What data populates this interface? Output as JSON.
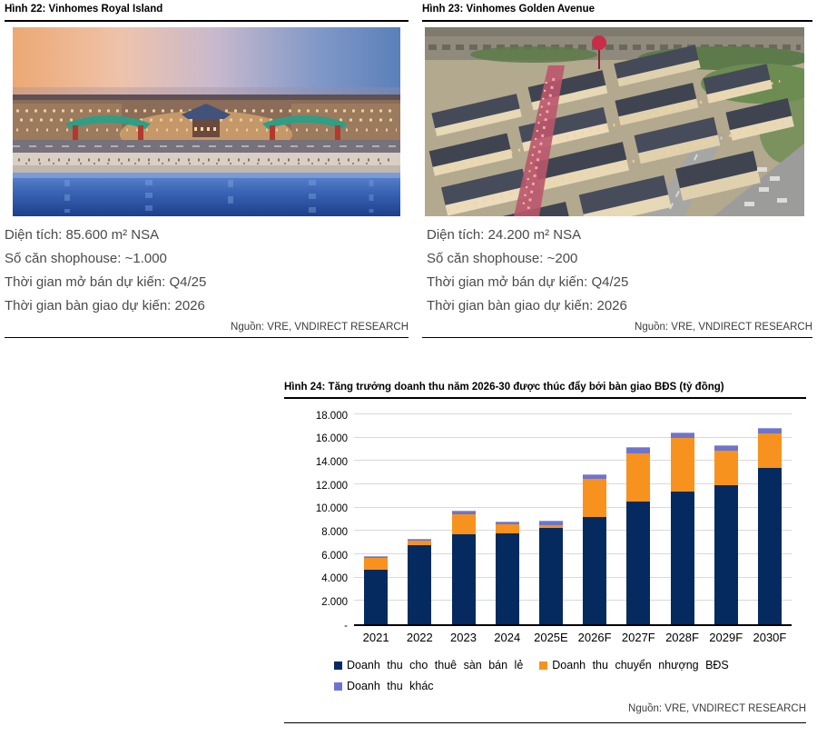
{
  "figure22": {
    "title": "Hình 22: Vinhomes Royal Island",
    "details": [
      "Diện tích: 85.600 m² NSA",
      "Số căn shophouse: ~1.000",
      "Thời gian mở bán dự kiến: Q4/25",
      "Thời gian bàn giao dự kiến: 2026"
    ],
    "source": "Nguồn: VRE, VNDIRECT RESEARCH"
  },
  "figure23": {
    "title": "Hình 23: Vinhomes Golden Avenue",
    "details": [
      "Diện tích: 24.200 m² NSA",
      "Số căn shophouse: ~200",
      "Thời gian mở bán dự kiến: Q4/25",
      "Thời gian bàn giao dự kiến: 2026"
    ],
    "source": "Nguồn: VRE, VNDIRECT RESEARCH"
  },
  "figure24": {
    "title": "Hình 24: Tăng trưởng doanh thu năm 2026-30 được thúc đẩy bởi bàn giao BĐS (tỷ đồng)",
    "source": "Nguồn: VRE, VNDIRECT RESEARCH"
  },
  "chart_data": {
    "type": "bar",
    "stacked": true,
    "title": "Tăng trưởng doanh thu năm 2026-30 được thúc đẩy bởi bàn giao BĐS (tỷ đồng)",
    "categories": [
      "2021",
      "2022",
      "2023",
      "2024",
      "2025E",
      "2026F",
      "2027F",
      "2028F",
      "2029F",
      "2030F"
    ],
    "series": [
      {
        "name": "Doanh thu cho thuê sàn bán lẻ",
        "color": "#052a60",
        "values": [
          4700,
          6850,
          7750,
          7900,
          8300,
          9250,
          10600,
          11500,
          12000,
          13500
        ]
      },
      {
        "name": "Doanh thu chuyển nhượng BĐS",
        "color": "#f7921e",
        "values": [
          1050,
          400,
          1800,
          750,
          300,
          3300,
          4200,
          4650,
          3000,
          3000
        ]
      },
      {
        "name": "Doanh thu khác",
        "color": "#6f74cb",
        "values": [
          150,
          150,
          250,
          200,
          400,
          450,
          500,
          450,
          500,
          500
        ]
      }
    ],
    "xlabel": "",
    "ylabel": "",
    "ylim": [
      0,
      18000
    ],
    "ytick_step": 2000,
    "ytick_labels": [
      "-",
      "2.000",
      "4.000",
      "6.000",
      "8.000",
      "10.000",
      "12.000",
      "14.000",
      "16.000",
      "18.000"
    ],
    "grid": true,
    "legend_position": "bottom",
    "legend_rows": [
      [
        0,
        1
      ],
      [
        2
      ]
    ]
  },
  "colors": {
    "rule": "#000000",
    "gridline": "#d9d9d9",
    "detail_text": "#4a4a4a"
  }
}
